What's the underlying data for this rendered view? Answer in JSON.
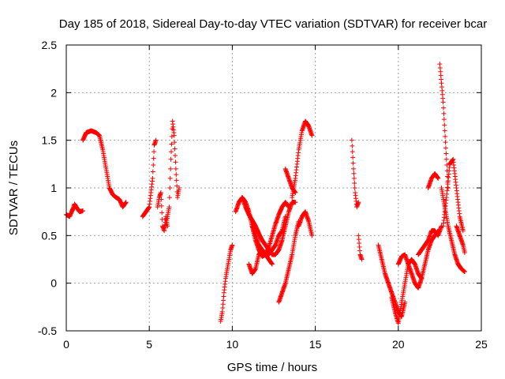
{
  "chart_data": {
    "type": "scatter",
    "title": "Day 185 of 2018, Sidereal Day-to-day VTEC variation (SDTVAR) for receiver bcar",
    "xlabel": "GPS time / hours",
    "ylabel": "SDTVAR / TECUs",
    "xlim": [
      0,
      25
    ],
    "ylim": [
      -0.5,
      2.5
    ],
    "xticks": [
      "0",
      "5",
      "10",
      "15",
      "20",
      "25"
    ],
    "yticks": [
      "-0.5",
      "0",
      "0.5",
      "1",
      "1.5",
      "2",
      "2.5"
    ],
    "grid": true,
    "marker": "+",
    "color": "#ff0000",
    "series": [
      {
        "name": "SDTVAR",
        "segments": [
          {
            "x": [
              0.0,
              0.2,
              0.4,
              0.5,
              0.6,
              0.8,
              1.0
            ],
            "y": [
              0.72,
              0.7,
              0.78,
              0.83,
              0.8,
              0.75,
              0.76
            ]
          },
          {
            "x": [
              1.0,
              1.2,
              1.5,
              1.8,
              2.0,
              2.2,
              2.4,
              2.6,
              2.8,
              3.0,
              3.2,
              3.4,
              3.6
            ],
            "y": [
              1.5,
              1.58,
              1.6,
              1.58,
              1.55,
              1.4,
              1.2,
              1.0,
              0.93,
              0.9,
              0.88,
              0.8,
              0.85
            ]
          },
          {
            "x": [
              4.6,
              4.8,
              5.0,
              5.2,
              5.3,
              5.4
            ],
            "y": [
              0.7,
              0.75,
              0.8,
              1.1,
              1.45,
              1.5
            ]
          },
          {
            "x": [
              5.5,
              5.6,
              5.7,
              5.8,
              5.9,
              6.0,
              6.1
            ],
            "y": [
              0.8,
              0.9,
              0.95,
              0.6,
              0.55,
              0.7,
              0.6
            ]
          },
          {
            "x": [
              6.0,
              6.2,
              6.3,
              6.4,
              6.5,
              6.6,
              6.7,
              6.8
            ],
            "y": [
              0.6,
              0.8,
              1.3,
              1.7,
              1.55,
              1.2,
              0.9,
              1.0
            ]
          },
          {
            "x": [
              9.3,
              9.4,
              9.5,
              9.6,
              9.7,
              9.8,
              9.9,
              10.0
            ],
            "y": [
              -0.4,
              -0.3,
              -0.1,
              0.05,
              0.15,
              0.25,
              0.35,
              0.4
            ]
          },
          {
            "x": [
              10.2,
              10.4,
              10.6,
              10.8,
              11.0,
              11.2,
              11.4,
              11.6,
              11.8,
              12.0,
              12.2,
              12.4,
              12.6,
              12.8,
              13.0,
              13.2
            ],
            "y": [
              0.75,
              0.85,
              0.9,
              0.85,
              0.75,
              0.6,
              0.5,
              0.4,
              0.35,
              0.3,
              0.3,
              0.35,
              0.4,
              0.5,
              0.55,
              0.7
            ]
          },
          {
            "x": [
              11.2,
              11.4,
              11.6,
              11.8,
              12.0,
              12.2,
              12.4,
              12.6,
              12.8,
              13.0,
              13.2,
              13.4
            ],
            "y": [
              0.6,
              0.45,
              0.35,
              0.28,
              0.3,
              0.38,
              0.5,
              0.62,
              0.72,
              0.8,
              0.85,
              0.8
            ]
          },
          {
            "x": [
              10.6,
              10.8,
              11.0,
              11.2,
              11.4,
              11.6,
              11.8,
              12.0,
              12.2,
              12.4,
              12.6,
              12.8,
              13.0,
              13.2,
              13.4,
              13.6,
              13.8
            ],
            "y": [
              0.9,
              0.8,
              0.72,
              0.66,
              0.6,
              0.52,
              0.45,
              0.4,
              0.35,
              0.3,
              0.3,
              0.35,
              0.45,
              0.6,
              0.75,
              0.85,
              0.85
            ]
          },
          {
            "x": [
              11.0,
              11.2,
              11.4,
              11.6,
              11.8,
              12.0,
              12.2,
              12.4
            ],
            "y": [
              0.2,
              0.1,
              0.15,
              0.3,
              0.35,
              0.3,
              0.25,
              0.2
            ]
          },
          {
            "x": [
              12.8,
              13.0,
              13.2,
              13.4,
              13.6,
              13.8,
              14.0
            ],
            "y": [
              -0.2,
              -0.1,
              0.0,
              0.15,
              0.3,
              0.5,
              0.65
            ]
          },
          {
            "x": [
              13.6,
              13.8,
              14.0,
              14.2,
              14.4,
              14.6,
              14.8
            ],
            "y": [
              0.9,
              1.1,
              1.4,
              1.6,
              1.7,
              1.65,
              1.55
            ]
          },
          {
            "x": [
              13.2,
              13.4,
              13.6,
              13.8
            ],
            "y": [
              1.2,
              1.1,
              1.0,
              0.95
            ]
          },
          {
            "x": [
              14.0,
              14.2,
              14.4,
              14.6,
              14.8
            ],
            "y": [
              0.6,
              0.7,
              0.75,
              0.65,
              0.5
            ]
          },
          {
            "x": [
              17.2,
              17.3,
              17.4,
              17.5,
              17.6
            ],
            "y": [
              1.5,
              1.2,
              0.95,
              0.8,
              0.85
            ]
          },
          {
            "x": [
              17.6,
              17.7,
              17.8
            ],
            "y": [
              0.5,
              0.3,
              0.25
            ]
          },
          {
            "x": [
              18.8,
              19.0,
              19.2,
              19.4,
              19.6,
              19.8,
              20.0,
              20.2,
              20.4
            ],
            "y": [
              0.4,
              0.25,
              0.1,
              0.0,
              -0.1,
              -0.2,
              -0.3,
              -0.35,
              -0.2
            ]
          },
          {
            "x": [
              19.6,
              19.8,
              20.0,
              20.2,
              20.4,
              20.6,
              20.8,
              21.0,
              21.2,
              21.4
            ],
            "y": [
              -0.15,
              -0.3,
              -0.42,
              -0.2,
              0.0,
              0.2,
              0.25,
              0.2,
              0.1,
              0.05
            ]
          },
          {
            "x": [
              20.0,
              20.2,
              20.4,
              20.6,
              20.8,
              21.0,
              21.2,
              21.4,
              21.6,
              21.8,
              22.0,
              22.2,
              22.4
            ],
            "y": [
              0.2,
              0.28,
              0.3,
              0.2,
              0.1,
              0.0,
              -0.05,
              0.05,
              0.2,
              0.35,
              0.45,
              0.5,
              0.55
            ]
          },
          {
            "x": [
              21.2,
              21.4,
              21.6,
              21.8,
              22.0,
              22.2,
              22.4,
              22.6
            ],
            "y": [
              0.3,
              0.35,
              0.4,
              0.45,
              0.55,
              0.55,
              0.5,
              0.6
            ]
          },
          {
            "x": [
              21.8,
              22.0,
              22.2,
              22.4
            ],
            "y": [
              1.0,
              1.1,
              1.15,
              1.1
            ]
          },
          {
            "x": [
              22.5,
              22.6,
              22.7,
              22.8,
              22.9,
              23.0
            ],
            "y": [
              2.3,
              2.1,
              1.9,
              1.6,
              1.3,
              1.0
            ]
          },
          {
            "x": [
              22.6,
              22.8,
              23.0,
              23.2,
              23.4,
              23.6,
              23.8,
              24.0
            ],
            "y": [
              1.0,
              0.8,
              0.6,
              0.45,
              0.3,
              0.2,
              0.15,
              0.12
            ]
          },
          {
            "x": [
              22.7,
              22.9,
              23.1,
              23.3,
              23.5,
              23.7,
              23.9
            ],
            "y": [
              0.6,
              0.9,
              1.25,
              1.3,
              1.0,
              0.7,
              0.55
            ]
          },
          {
            "x": [
              23.5,
              23.7,
              23.9,
              24.0
            ],
            "y": [
              0.6,
              0.5,
              0.4,
              0.32
            ]
          }
        ]
      }
    ]
  }
}
